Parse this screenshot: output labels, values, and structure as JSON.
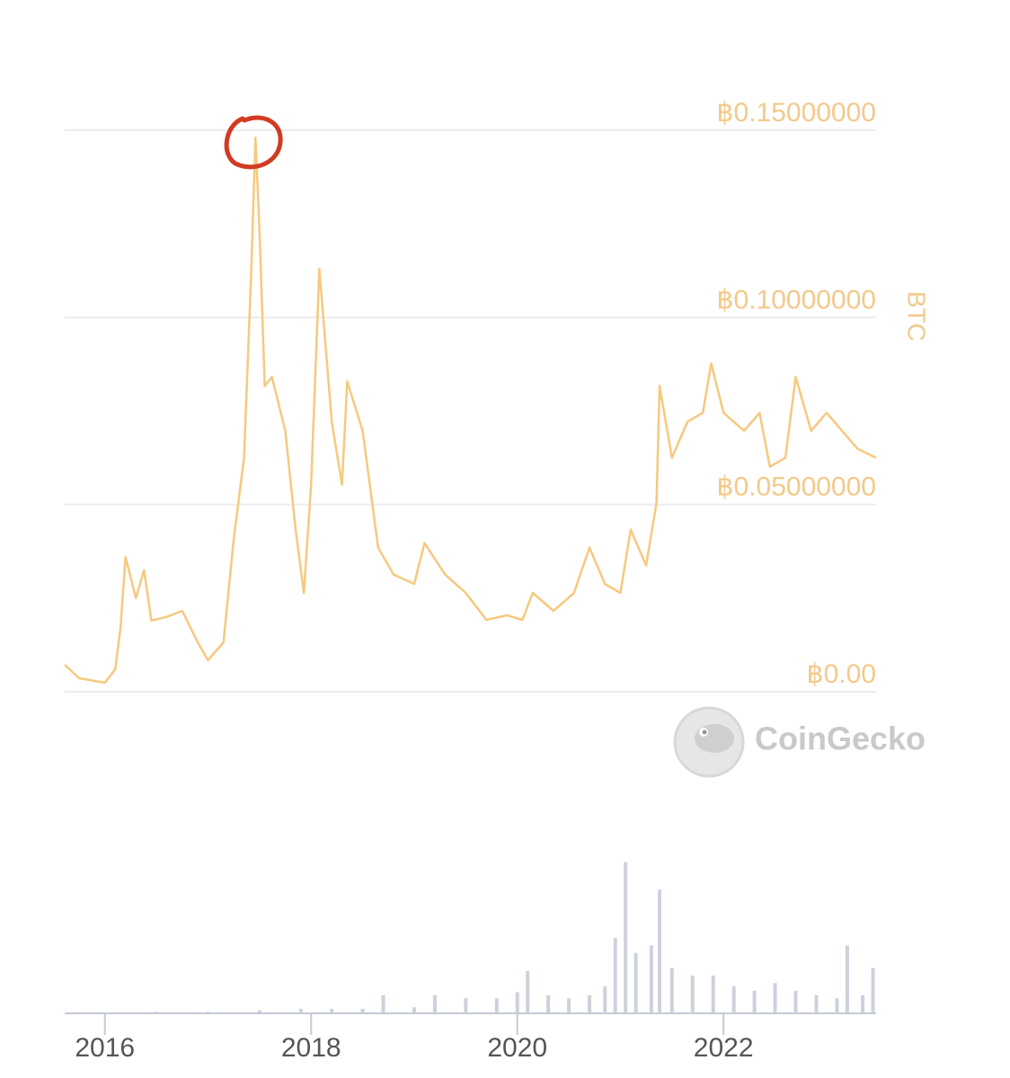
{
  "watermark": "CoinGecko",
  "chart_data": [
    {
      "type": "line",
      "ylabel": "BTC",
      "color": "#f6c97e",
      "grid": true,
      "xlim": [
        2015.61,
        2023.48
      ],
      "ylim": [
        0,
        0.15
      ],
      "yticks": [
        {
          "value": 0,
          "label": "฿0.00"
        },
        {
          "value": 0.05,
          "label": "฿0.05000000"
        },
        {
          "value": 0.1,
          "label": "฿0.10000000"
        },
        {
          "value": 0.15,
          "label": "฿0.15000000"
        }
      ],
      "x": [
        2015.61,
        2015.75,
        2016.0,
        2016.1,
        2016.15,
        2016.2,
        2016.3,
        2016.38,
        2016.45,
        2016.6,
        2016.75,
        2016.9,
        2017.0,
        2017.15,
        2017.25,
        2017.35,
        2017.42,
        2017.46,
        2017.5,
        2017.55,
        2017.62,
        2017.75,
        2017.85,
        2017.93,
        2018.0,
        2018.08,
        2018.2,
        2018.3,
        2018.35,
        2018.5,
        2018.65,
        2018.8,
        2019.0,
        2019.1,
        2019.3,
        2019.5,
        2019.7,
        2019.9,
        2020.05,
        2020.15,
        2020.35,
        2020.55,
        2020.7,
        2020.85,
        2021.0,
        2021.1,
        2021.25,
        2021.35,
        2021.38,
        2021.5,
        2021.65,
        2021.8,
        2021.88,
        2022.0,
        2022.2,
        2022.35,
        2022.45,
        2022.6,
        2022.7,
        2022.85,
        2023.0,
        2023.15,
        2023.3,
        2023.48
      ],
      "values": [
        0.0072,
        0.0036,
        0.0024,
        0.006,
        0.0168,
        0.036,
        0.025,
        0.0325,
        0.019,
        0.02,
        0.0216,
        0.0132,
        0.0084,
        0.0132,
        0.041,
        0.0625,
        0.113,
        0.148,
        0.1226,
        0.0817,
        0.0841,
        0.0697,
        0.0433,
        0.0264,
        0.0553,
        0.113,
        0.0721,
        0.0553,
        0.0829,
        0.0697,
        0.0385,
        0.0313,
        0.0288,
        0.0397,
        0.0313,
        0.0264,
        0.0192,
        0.0204,
        0.0192,
        0.0264,
        0.0216,
        0.0264,
        0.0385,
        0.0288,
        0.0264,
        0.0433,
        0.0337,
        0.0505,
        0.0817,
        0.0625,
        0.0721,
        0.0745,
        0.0877,
        0.0745,
        0.0697,
        0.0745,
        0.0601,
        0.0625,
        0.0841,
        0.0697,
        0.0745,
        0.0697,
        0.0649,
        0.0625
      ]
    },
    {
      "type": "bar",
      "color": "#cdd1dc",
      "xlim": [
        2015.61,
        2023.48
      ],
      "ylim": [
        0,
        100
      ],
      "xticks": [
        2016,
        2018,
        2020,
        2022
      ],
      "x": [
        2016.0,
        2016.5,
        2017.0,
        2017.5,
        2017.9,
        2018.2,
        2018.5,
        2018.7,
        2019.0,
        2019.2,
        2019.5,
        2019.8,
        2020.0,
        2020.1,
        2020.3,
        2020.5,
        2020.7,
        2020.85,
        2020.95,
        2021.05,
        2021.15,
        2021.3,
        2021.38,
        2021.5,
        2021.7,
        2021.9,
        2022.1,
        2022.3,
        2022.5,
        2022.7,
        2022.9,
        2023.1,
        2023.2,
        2023.35,
        2023.45
      ],
      "values": [
        0.5,
        1,
        1,
        2,
        3,
        3,
        3,
        12,
        4,
        12,
        10,
        10,
        14,
        28,
        12,
        10,
        12,
        18,
        50,
        100,
        40,
        45,
        82,
        30,
        25,
        25,
        18,
        15,
        20,
        15,
        12,
        10,
        45,
        12,
        30
      ]
    }
  ]
}
